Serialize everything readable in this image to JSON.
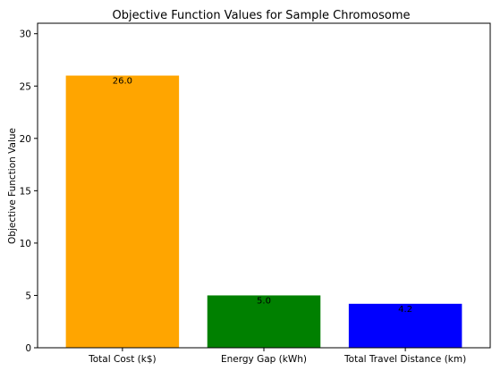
{
  "chart_data": {
    "type": "bar",
    "title": "Objective Function Values for Sample Chromosome",
    "xlabel": "",
    "ylabel": "Objective Function Value",
    "categories": [
      "Total Cost (k$)",
      "Energy Gap (kWh)",
      "Total Travel Distance (km)"
    ],
    "values": [
      26.0,
      5.0,
      4.2
    ],
    "data_labels": [
      "26.0",
      "5.0",
      "4.2"
    ],
    "colors": [
      "#ffa500",
      "#008000",
      "#0000ff"
    ],
    "ylim": [
      0,
      31
    ],
    "yticks": [
      0,
      5,
      10,
      15,
      20,
      25,
      30
    ],
    "grid": false
  }
}
